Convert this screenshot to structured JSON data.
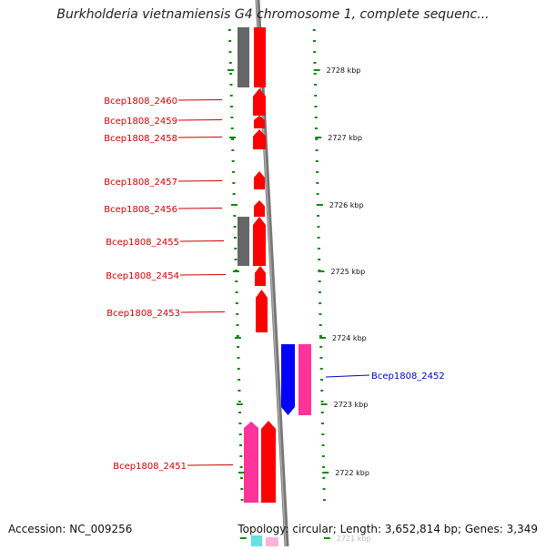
{
  "title": "Burkholderia vietnamiensis G4 chromosome 1, complete sequenc...",
  "footer": {
    "accession": "Accession: NC_009256",
    "topology": "Topology: circular; Length: 3,652,814 bp; Genes: 3,349"
  },
  "colors": {
    "forward_gene": "#ff0000",
    "reverse_gene": "#0000ff",
    "pseudo_gene": "#ff3399",
    "gray_block": "#666666",
    "tick": "#118811",
    "forward_label": "#cc0000",
    "reverse_label": "#0000cc"
  },
  "scale": {
    "ticks": [
      {
        "label": "2728 kbp"
      },
      {
        "label": "2727 kbp"
      },
      {
        "label": "2726 kbp"
      },
      {
        "label": "2725 kbp"
      },
      {
        "label": "2724 kbp"
      },
      {
        "label": "2723 kbp"
      },
      {
        "label": "2722 kbp"
      },
      {
        "label": "2721 kbp"
      }
    ]
  },
  "genes": [
    {
      "label": "Bcep1808_2460",
      "strand": "forward"
    },
    {
      "label": "Bcep1808_2459",
      "strand": "forward"
    },
    {
      "label": "Bcep1808_2458",
      "strand": "forward"
    },
    {
      "label": "Bcep1808_2457",
      "strand": "forward"
    },
    {
      "label": "Bcep1808_2456",
      "strand": "forward"
    },
    {
      "label": "Bcep1808_2455",
      "strand": "forward"
    },
    {
      "label": "Bcep1808_2454",
      "strand": "forward"
    },
    {
      "label": "Bcep1808_2453",
      "strand": "forward"
    },
    {
      "label": "Bcep1808_2452",
      "strand": "reverse"
    },
    {
      "label": "Bcep1808_2451",
      "strand": "forward"
    }
  ]
}
